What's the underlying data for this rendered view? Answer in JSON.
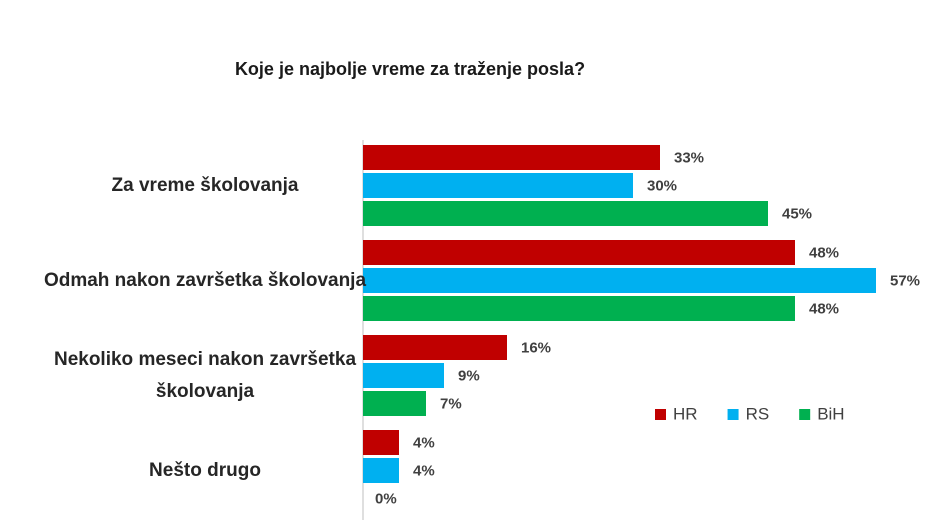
{
  "chart_data": {
    "type": "bar",
    "orientation": "horizontal",
    "title": "Koje je najbolje vreme za traženje posla?",
    "categories": [
      "Za vreme školovanja",
      "Odmah nakon završetka školovanja",
      "Nekoliko meseci nakon završetka školovanja",
      "Nešto drugo"
    ],
    "series": [
      {
        "name": "HR",
        "color": "#c00000",
        "values": [
          33,
          48,
          16,
          4
        ],
        "value_labels": [
          "33%",
          "48%",
          "16%",
          "4%"
        ]
      },
      {
        "name": "RS",
        "color": "#00b0f0",
        "values": [
          30,
          57,
          9,
          4
        ],
        "value_labels": [
          "30%",
          "57%",
          "9%",
          "4%"
        ]
      },
      {
        "name": "BiH",
        "color": "#00b050",
        "values": [
          45,
          48,
          7,
          0
        ],
        "value_labels": [
          "45%",
          "48%",
          "7%",
          "0%"
        ]
      }
    ],
    "legend": "right"
  }
}
